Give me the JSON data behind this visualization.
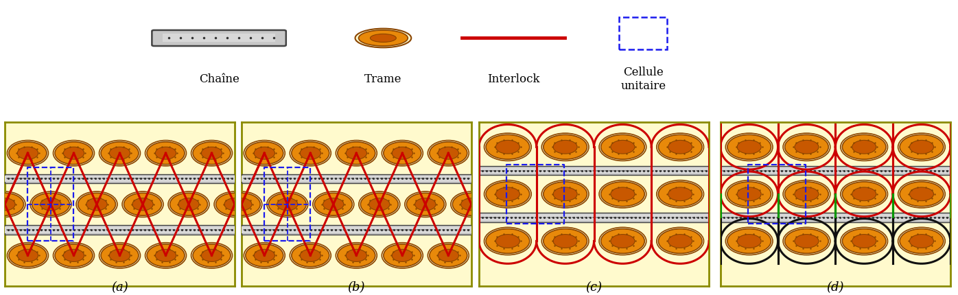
{
  "bg_color": "#fffde7",
  "labels": [
    "(a)",
    "(b)",
    "(c)",
    "(d)"
  ],
  "red_color": "#cc0000",
  "blue_color": "#1a1aee",
  "gray_color": "#999999",
  "orange_color": "#e8890a",
  "dark_orange": "#8B4500",
  "green_color": "#009900",
  "black_color": "#111111",
  "yellow_bg": "#fffacd",
  "border_olive": "#8B8B00"
}
